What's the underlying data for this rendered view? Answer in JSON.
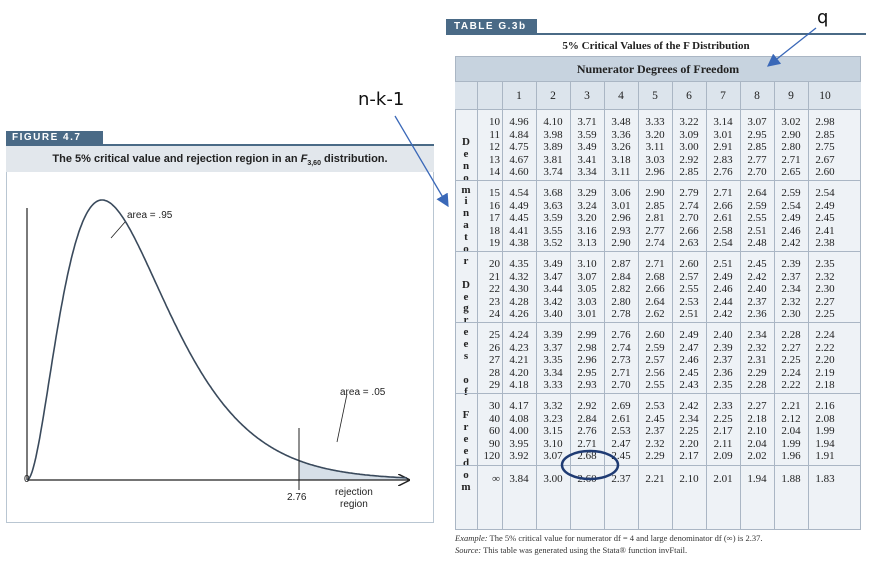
{
  "figure": {
    "tag": "FIGURE 4.7",
    "title_prefix": "The 5% critical value and rejection region in an ",
    "title_F": "F",
    "title_sub": "3,60",
    "title_suffix": " distribution.",
    "area_main_label": "area = .95",
    "area_tail_label": "area = .05",
    "x_origin_label": "0",
    "critical_value_label": "2.76",
    "rejection_label_line1": "rejection",
    "rejection_label_line2": "region"
  },
  "table": {
    "tag": "TABLE G.3b",
    "title": "5% Critical Values of the F Distribution",
    "numerator_header": "Numerator Degrees of Freedom",
    "denominator_vertical": "Denominator Degrees of Freedom",
    "columns": [
      "1",
      "2",
      "3",
      "4",
      "5",
      "6",
      "7",
      "8",
      "9",
      "10"
    ],
    "rows": [
      {
        "df": "10",
        "values": [
          "4.96",
          "4.10",
          "3.71",
          "3.48",
          "3.33",
          "3.22",
          "3.14",
          "3.07",
          "3.02",
          "2.98"
        ]
      },
      {
        "df": "11",
        "values": [
          "4.84",
          "3.98",
          "3.59",
          "3.36",
          "3.20",
          "3.09",
          "3.01",
          "2.95",
          "2.90",
          "2.85"
        ]
      },
      {
        "df": "12",
        "values": [
          "4.75",
          "3.89",
          "3.49",
          "3.26",
          "3.11",
          "3.00",
          "2.91",
          "2.85",
          "2.80",
          "2.75"
        ]
      },
      {
        "df": "13",
        "values": [
          "4.67",
          "3.81",
          "3.41",
          "3.18",
          "3.03",
          "2.92",
          "2.83",
          "2.77",
          "2.71",
          "2.67"
        ]
      },
      {
        "df": "14",
        "values": [
          "4.60",
          "3.74",
          "3.34",
          "3.11",
          "2.96",
          "2.85",
          "2.76",
          "2.70",
          "2.65",
          "2.60"
        ]
      },
      {
        "df": "15",
        "values": [
          "4.54",
          "3.68",
          "3.29",
          "3.06",
          "2.90",
          "2.79",
          "2.71",
          "2.64",
          "2.59",
          "2.54"
        ]
      },
      {
        "df": "16",
        "values": [
          "4.49",
          "3.63",
          "3.24",
          "3.01",
          "2.85",
          "2.74",
          "2.66",
          "2.59",
          "2.54",
          "2.49"
        ]
      },
      {
        "df": "17",
        "values": [
          "4.45",
          "3.59",
          "3.20",
          "2.96",
          "2.81",
          "2.70",
          "2.61",
          "2.55",
          "2.49",
          "2.45"
        ]
      },
      {
        "df": "18",
        "values": [
          "4.41",
          "3.55",
          "3.16",
          "2.93",
          "2.77",
          "2.66",
          "2.58",
          "2.51",
          "2.46",
          "2.41"
        ]
      },
      {
        "df": "19",
        "values": [
          "4.38",
          "3.52",
          "3.13",
          "2.90",
          "2.74",
          "2.63",
          "2.54",
          "2.48",
          "2.42",
          "2.38"
        ]
      },
      {
        "df": "20",
        "values": [
          "4.35",
          "3.49",
          "3.10",
          "2.87",
          "2.71",
          "2.60",
          "2.51",
          "2.45",
          "2.39",
          "2.35"
        ]
      },
      {
        "df": "21",
        "values": [
          "4.32",
          "3.47",
          "3.07",
          "2.84",
          "2.68",
          "2.57",
          "2.49",
          "2.42",
          "2.37",
          "2.32"
        ]
      },
      {
        "df": "22",
        "values": [
          "4.30",
          "3.44",
          "3.05",
          "2.82",
          "2.66",
          "2.55",
          "2.46",
          "2.40",
          "2.34",
          "2.30"
        ]
      },
      {
        "df": "23",
        "values": [
          "4.28",
          "3.42",
          "3.03",
          "2.80",
          "2.64",
          "2.53",
          "2.44",
          "2.37",
          "2.32",
          "2.27"
        ]
      },
      {
        "df": "24",
        "values": [
          "4.26",
          "3.40",
          "3.01",
          "2.78",
          "2.62",
          "2.51",
          "2.42",
          "2.36",
          "2.30",
          "2.25"
        ]
      },
      {
        "df": "25",
        "values": [
          "4.24",
          "3.39",
          "2.99",
          "2.76",
          "2.60",
          "2.49",
          "2.40",
          "2.34",
          "2.28",
          "2.24"
        ]
      },
      {
        "df": "26",
        "values": [
          "4.23",
          "3.37",
          "2.98",
          "2.74",
          "2.59",
          "2.47",
          "2.39",
          "2.32",
          "2.27",
          "2.22"
        ]
      },
      {
        "df": "27",
        "values": [
          "4.21",
          "3.35",
          "2.96",
          "2.73",
          "2.57",
          "2.46",
          "2.37",
          "2.31",
          "2.25",
          "2.20"
        ]
      },
      {
        "df": "28",
        "values": [
          "4.20",
          "3.34",
          "2.95",
          "2.71",
          "2.56",
          "2.45",
          "2.36",
          "2.29",
          "2.24",
          "2.19"
        ]
      },
      {
        "df": "29",
        "values": [
          "4.18",
          "3.33",
          "2.93",
          "2.70",
          "2.55",
          "2.43",
          "2.35",
          "2.28",
          "2.22",
          "2.18"
        ]
      },
      {
        "df": "30",
        "values": [
          "4.17",
          "3.32",
          "2.92",
          "2.69",
          "2.53",
          "2.42",
          "2.33",
          "2.27",
          "2.21",
          "2.16"
        ]
      },
      {
        "df": "40",
        "values": [
          "4.08",
          "3.23",
          "2.84",
          "2.61",
          "2.45",
          "2.34",
          "2.25",
          "2.18",
          "2.12",
          "2.08"
        ]
      },
      {
        "df": "60",
        "values": [
          "4.00",
          "3.15",
          "2.76",
          "2.53",
          "2.37",
          "2.25",
          "2.17",
          "2.10",
          "2.04",
          "1.99"
        ]
      },
      {
        "df": "90",
        "values": [
          "3.95",
          "3.10",
          "2.71",
          "2.47",
          "2.32",
          "2.20",
          "2.11",
          "2.04",
          "1.99",
          "1.94"
        ]
      },
      {
        "df": "120",
        "values": [
          "3.92",
          "3.07",
          "2.68",
          "2.45",
          "2.29",
          "2.17",
          "2.09",
          "2.02",
          "1.96",
          "1.91"
        ]
      },
      {
        "df": "∞",
        "values": [
          "3.84",
          "3.00",
          "2.60",
          "2.37",
          "2.21",
          "2.10",
          "2.01",
          "1.94",
          "1.88",
          "1.83"
        ]
      }
    ],
    "example_label": "Example:",
    "example_text": " The 5% critical value for numerator df = 4 and large denominator df (∞) is 2.37.",
    "source_label": "Source:",
    "source_text": " This table was generated using the Stata® function invFtail."
  },
  "annotations": {
    "q_label": "q",
    "nk1_label": "n-k-1",
    "circled_value": "2.76",
    "ink_color": "#1f3b73"
  }
}
